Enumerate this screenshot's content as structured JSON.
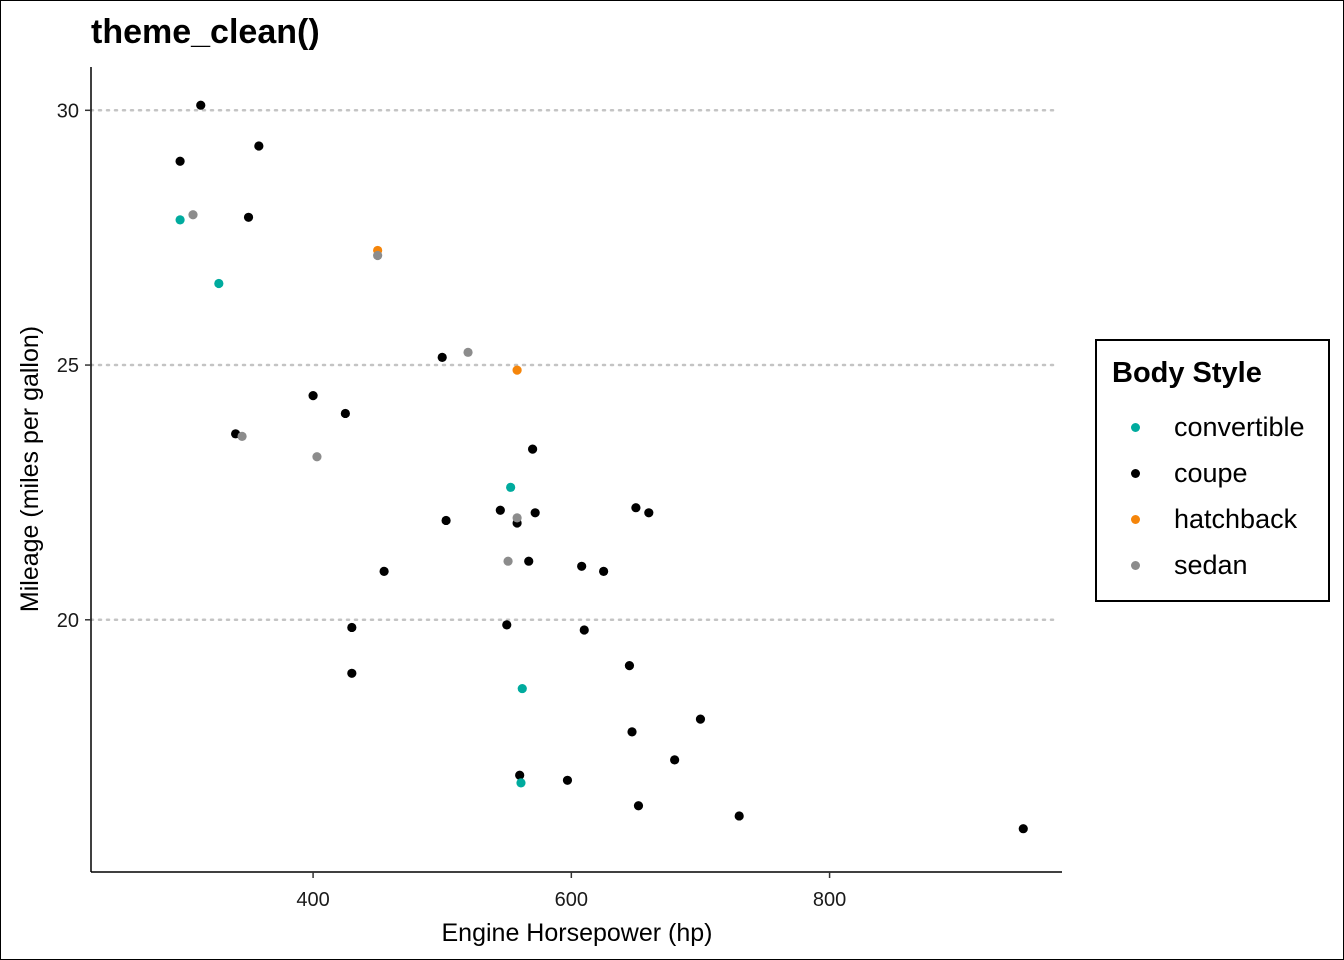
{
  "chart_data": {
    "type": "scatter",
    "title": "theme_clean()",
    "xlabel": "Engine Horsepower (hp)",
    "ylabel": "Mileage (miles per gallon)",
    "xlim": [
      228,
      980
    ],
    "ylim": [
      15.05,
      30.85
    ],
    "x_ticks": [
      400,
      600,
      800
    ],
    "y_ticks": [
      20,
      25,
      30
    ],
    "grid": "horizontal dotted major gridlines",
    "legend": {
      "title": "Body Style",
      "position": "right",
      "items": [
        {
          "name": "convertible",
          "color": "#00AB9E"
        },
        {
          "name": "coupe",
          "color": "#000000"
        },
        {
          "name": "hatchback",
          "color": "#F5850A"
        },
        {
          "name": "sedan",
          "color": "#8C8C8C"
        }
      ]
    },
    "series": [
      {
        "name": "coupe",
        "x": [
          313,
          297,
          358,
          350,
          500,
          400,
          425,
          340,
          570,
          545,
          558,
          572,
          503,
          650,
          660,
          455,
          567,
          608,
          625,
          430,
          550,
          610,
          645,
          430,
          700,
          647,
          680,
          560,
          597,
          652,
          730,
          950
        ],
        "y": [
          30.1,
          29.0,
          29.3,
          27.9,
          25.15,
          24.4,
          24.05,
          23.65,
          23.35,
          22.15,
          21.9,
          22.1,
          21.95,
          22.2,
          22.1,
          20.95,
          21.15,
          21.05,
          20.95,
          19.85,
          19.9,
          19.8,
          19.1,
          18.95,
          18.05,
          17.8,
          17.25,
          16.95,
          16.85,
          16.35,
          16.15,
          15.9
        ]
      },
      {
        "name": "convertible",
        "x": [
          297,
          327,
          553,
          562,
          561
        ],
        "y": [
          27.85,
          26.6,
          22.6,
          18.65,
          16.8
        ]
      },
      {
        "name": "hatchback",
        "x": [
          450,
          558
        ],
        "y": [
          27.25,
          24.9
        ]
      },
      {
        "name": "sedan",
        "x": [
          307,
          450,
          520,
          345,
          403,
          558,
          551
        ],
        "y": [
          27.95,
          27.15,
          25.25,
          23.6,
          23.2,
          22.0,
          21.15
        ]
      }
    ]
  }
}
